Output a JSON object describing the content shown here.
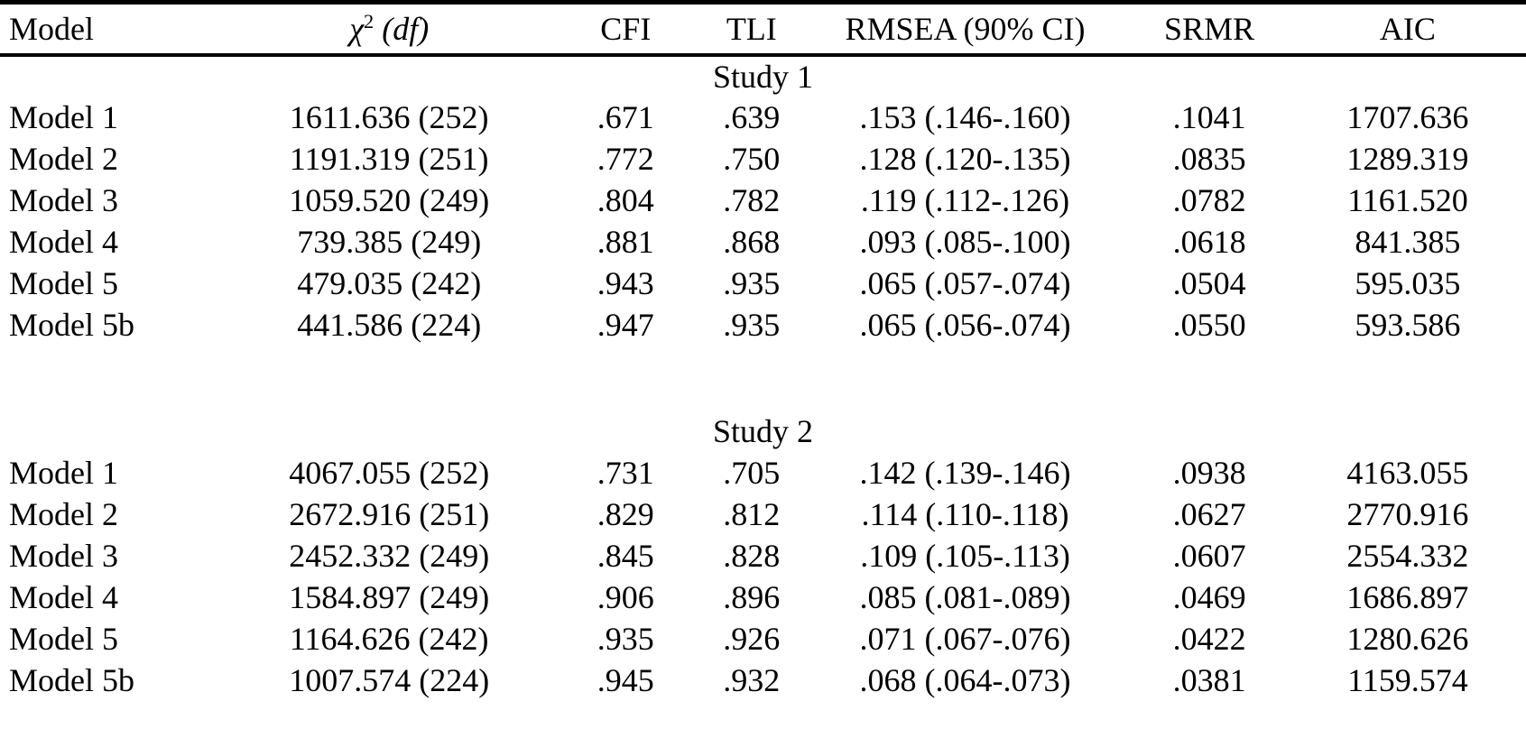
{
  "colors": {
    "background": "#ffffff",
    "text": "#000000",
    "rule": "#000000"
  },
  "table": {
    "header": {
      "model": "Model",
      "chi_symbol": "χ",
      "chi_superscript": "2",
      "df_label": "(df)",
      "cfi": "CFI",
      "tli": "TLI",
      "rmsea": "RMSEA (90% CI)",
      "srmr": "SRMR",
      "aic": "AIC"
    },
    "sections": [
      {
        "label": "Study 1",
        "rows": [
          [
            "Model 1",
            "1611.636 (252)",
            ".671",
            ".639",
            ".153 (.146-.160)",
            ".1041",
            "1707.636"
          ],
          [
            "Model 2",
            "1191.319 (251)",
            ".772",
            ".750",
            ".128 (.120-.135)",
            ".0835",
            "1289.319"
          ],
          [
            "Model 3",
            "1059.520 (249)",
            ".804",
            ".782",
            ".119 (.112-.126)",
            ".0782",
            "1161.520"
          ],
          [
            "Model 4",
            "739.385 (249)",
            ".881",
            ".868",
            ".093 (.085-.100)",
            ".0618",
            "841.385"
          ],
          [
            "Model 5",
            "479.035 (242)",
            ".943",
            ".935",
            ".065 (.057-.074)",
            ".0504",
            "595.035"
          ],
          [
            "Model 5b",
            "441.586 (224)",
            ".947",
            ".935",
            ".065 (.056-.074)",
            ".0550",
            "593.586"
          ]
        ]
      },
      {
        "label": "Study 2",
        "rows": [
          [
            "Model 1",
            "4067.055 (252)",
            ".731",
            ".705",
            ".142 (.139-.146)",
            ".0938",
            "4163.055"
          ],
          [
            "Model 2",
            "2672.916 (251)",
            ".829",
            ".812",
            ".114 (.110-.118)",
            ".0627",
            "2770.916"
          ],
          [
            "Model 3",
            "2452.332 (249)",
            ".845",
            ".828",
            ".109 (.105-.113)",
            ".0607",
            "2554.332"
          ],
          [
            "Model 4",
            "1584.897 (249)",
            ".906",
            ".896",
            ".085 (.081-.089)",
            ".0469",
            "1686.897"
          ],
          [
            "Model 5",
            "1164.626 (242)",
            ".935",
            ".926",
            ".071 (.067-.076)",
            ".0422",
            "1280.626"
          ],
          [
            "Model 5b",
            "1007.574 (224)",
            ".945",
            ".932",
            ".068 (.064-.073)",
            ".0381",
            "1159.574"
          ]
        ]
      }
    ]
  }
}
